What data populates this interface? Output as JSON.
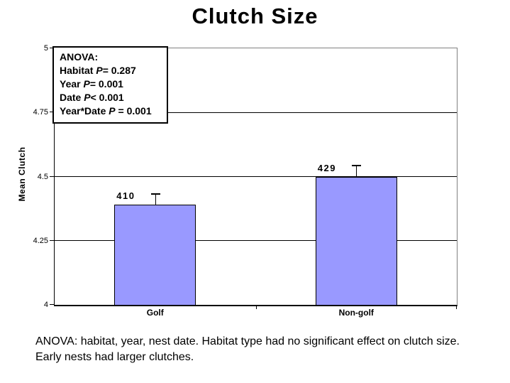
{
  "chart_data": {
    "type": "bar",
    "title": "Clutch Size",
    "categories": [
      "Golf",
      "Non-golf"
    ],
    "values": [
      4.39,
      4.5
    ],
    "error_plus": [
      0.04,
      0.04
    ],
    "bar_labels": [
      "410",
      "429"
    ],
    "xlabel": "",
    "ylabel": "Mean Clutch",
    "ylim": [
      4,
      5
    ],
    "yticks": [
      4,
      4.25,
      4.5,
      4.75,
      5
    ],
    "ytick_labels": [
      "4",
      "4.25",
      "4.5",
      "4.75",
      "5"
    ],
    "grid": "horizontal",
    "legend": "none",
    "bar_color": "#9999FF",
    "bar_border_color": "#000000",
    "plot_border_color": "#808080"
  },
  "anova_box": {
    "lines": [
      {
        "pre": "ANOVA:",
        "p": "",
        "post": ""
      },
      {
        "pre": "Habitat ",
        "p": "P",
        "post": "= 0.287"
      },
      {
        "pre": "Year ",
        "p": "P",
        "post": "= 0.001"
      },
      {
        "pre": "Date ",
        "p": "P",
        "post": "< 0.001"
      },
      {
        "pre": "Year*Date ",
        "p": "P",
        "post": " = 0.001"
      }
    ]
  },
  "caption": "ANOVA: habitat, year, nest date.  Habitat type had no significant effect on clutch size.  Early nests had larger clutches."
}
